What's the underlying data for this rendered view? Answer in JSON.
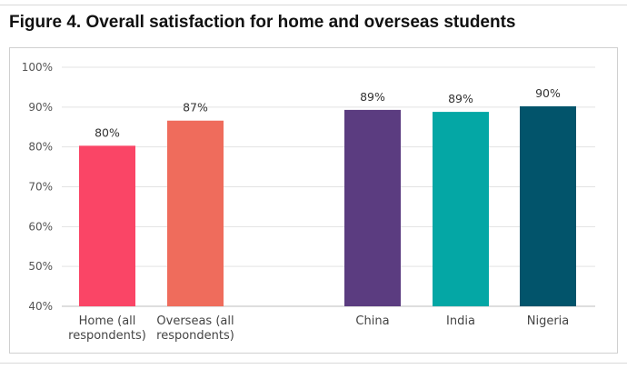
{
  "figure_title": "Figure 4. Overall satisfaction for home and overseas students",
  "chart_data": {
    "type": "bar",
    "title": "Figure 4. Overall satisfaction for home and overseas students",
    "xlabel": "",
    "ylabel": "",
    "categories": [
      [
        "Home (all",
        "respondents)"
      ],
      [
        "Overseas (all",
        "respondents)"
      ],
      [
        "China"
      ],
      [
        "India"
      ],
      [
        "Nigeria"
      ]
    ],
    "values": [
      80.3,
      86.6,
      89.3,
      88.8,
      90.2
    ],
    "data_labels": [
      "80%",
      "87%",
      "89%",
      "89%",
      "90%"
    ],
    "colors": [
      "#fa4566",
      "#ef6c5c",
      "#5b3c80",
      "#04a7a5",
      "#02546b"
    ],
    "ylim": [
      40,
      100
    ],
    "yticks": [
      40,
      50,
      60,
      70,
      80,
      90,
      100
    ],
    "ytick_labels": [
      "40%",
      "50%",
      "60%",
      "70%",
      "80%",
      "90%",
      "100%"
    ],
    "grid": true,
    "legend": "none"
  }
}
